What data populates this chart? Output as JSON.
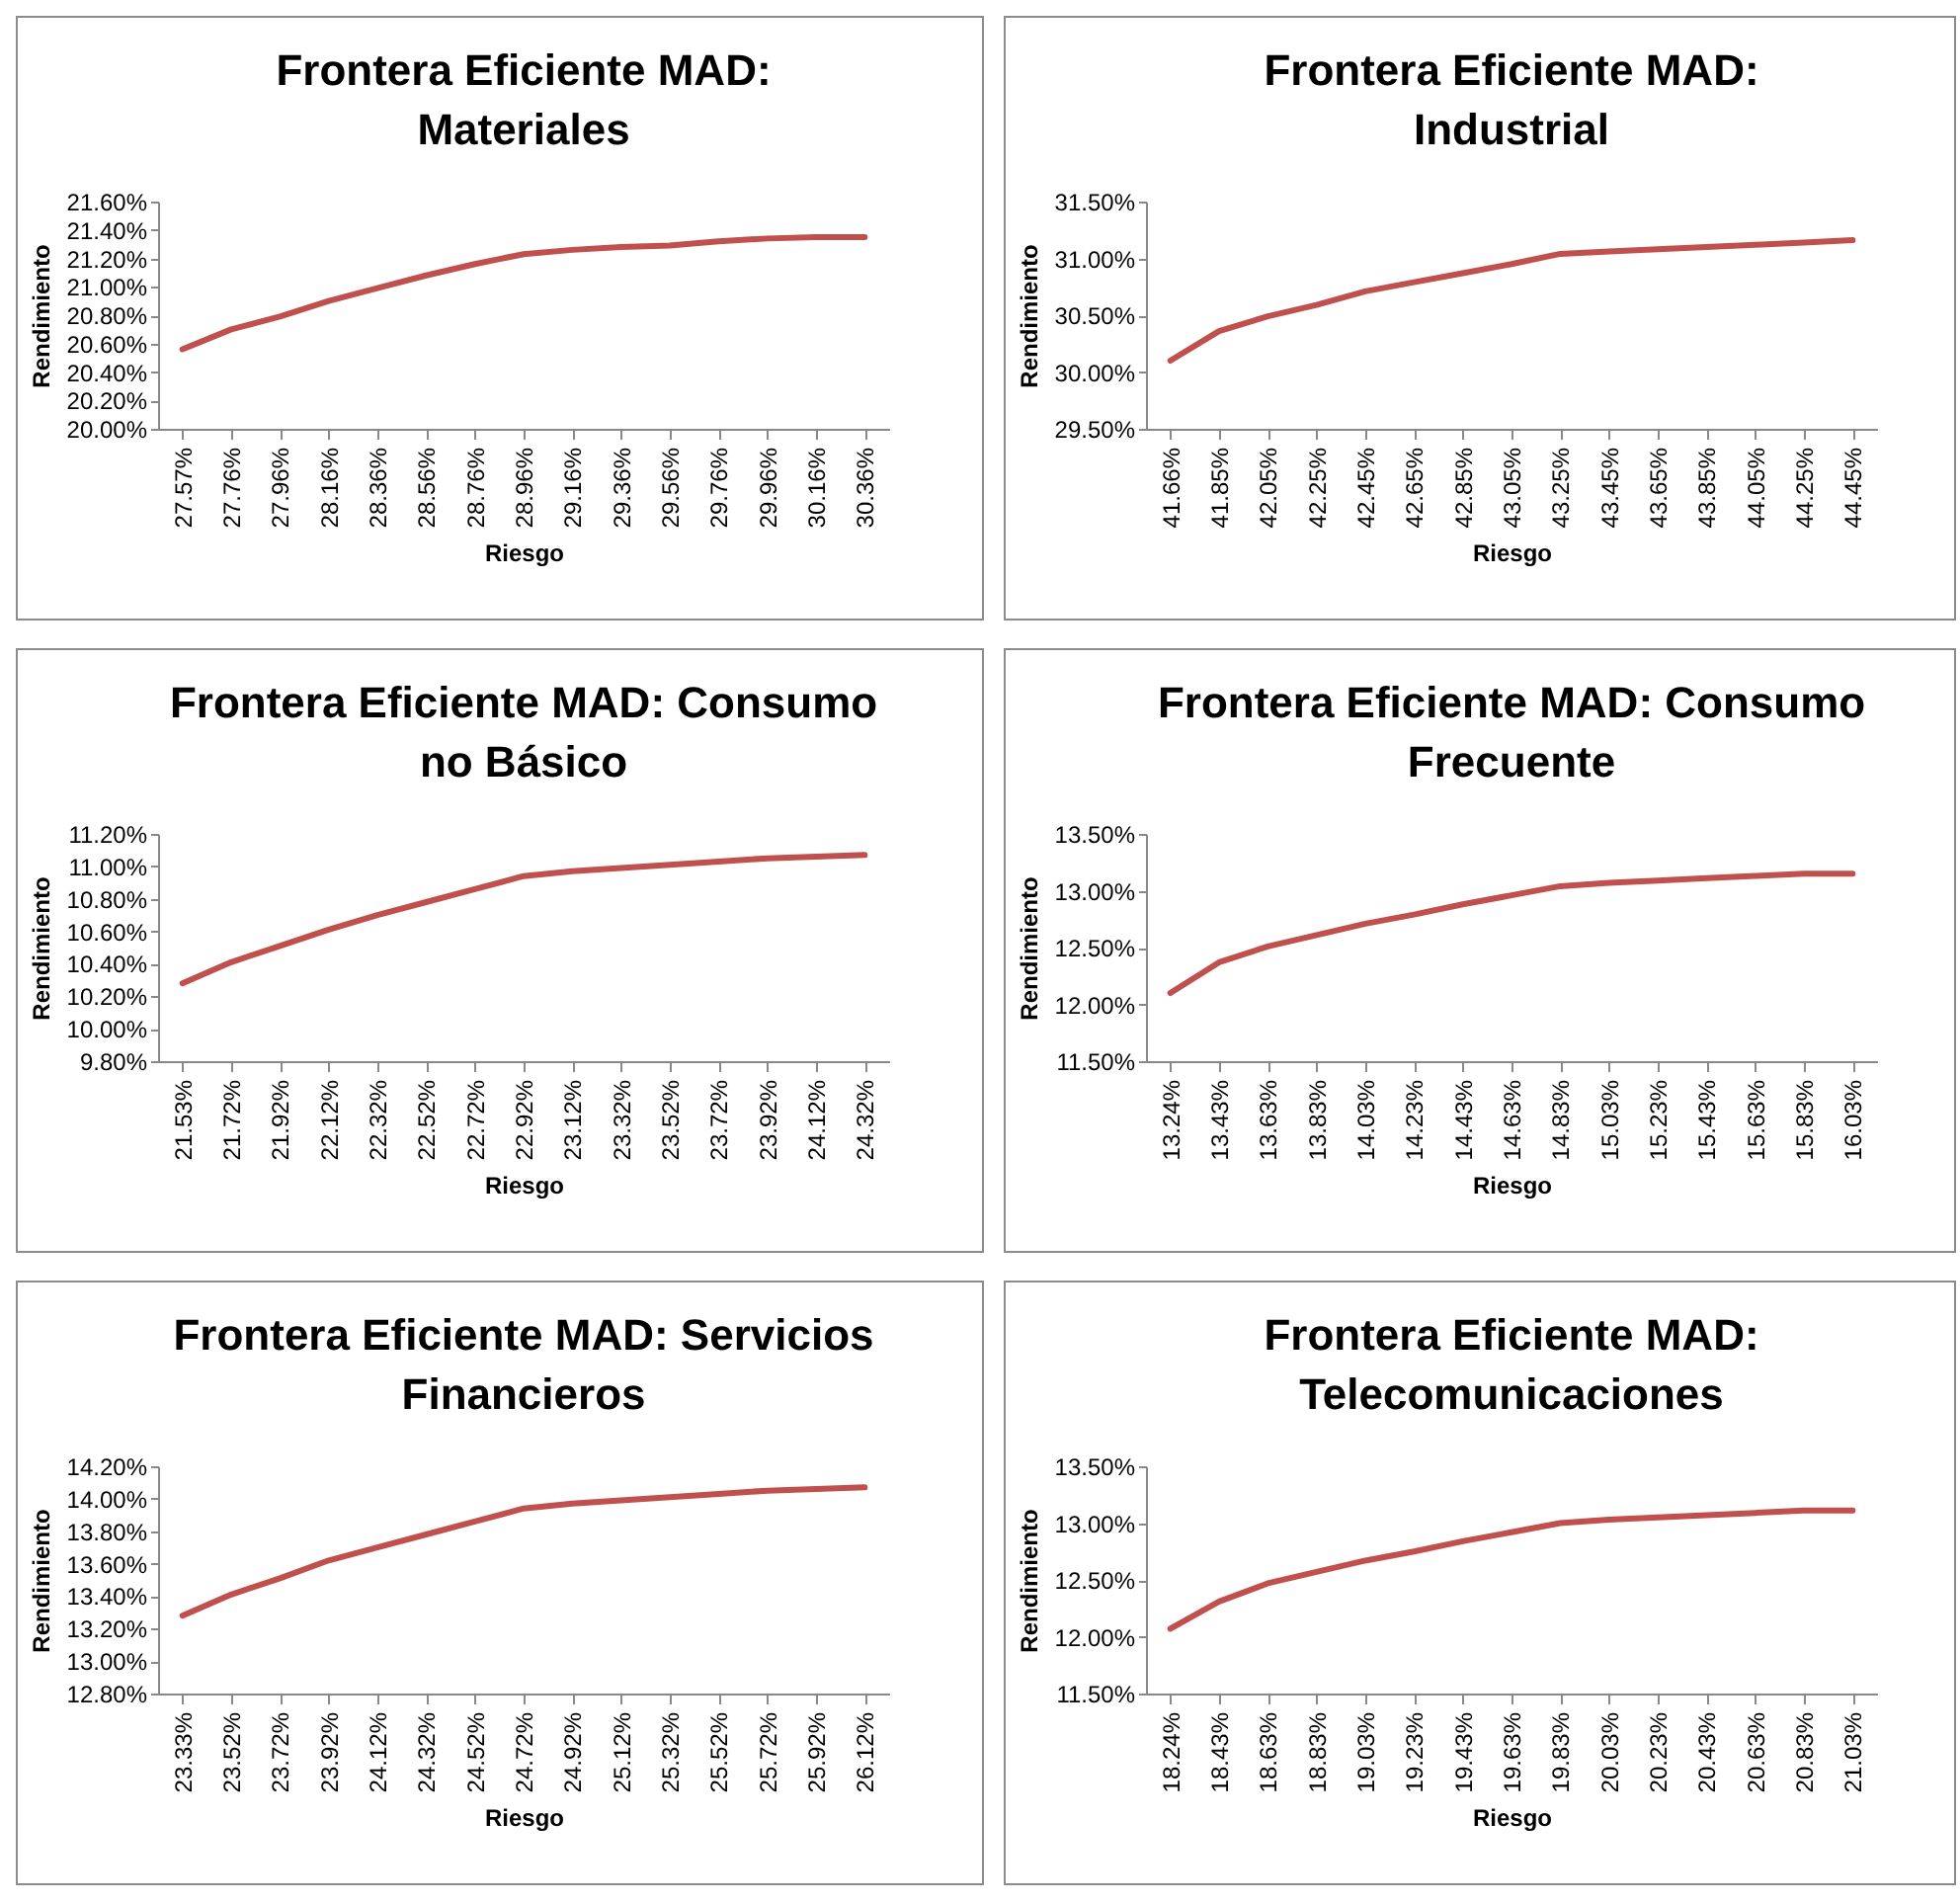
{
  "chart_data": [
    {
      "type": "line",
      "title": "Frontera Eficiente MAD: Materiales",
      "xlabel": "Riesgo",
      "ylabel": "Rendimiento",
      "categories": [
        "27.57%",
        "27.76%",
        "27.96%",
        "28.16%",
        "28.36%",
        "28.56%",
        "28.76%",
        "28.96%",
        "29.16%",
        "29.36%",
        "29.56%",
        "29.76%",
        "29.96%",
        "30.16%",
        "30.36%"
      ],
      "series": [
        {
          "color": "#c0504d",
          "values": [
            20.56,
            20.7,
            20.79,
            20.9,
            20.99,
            21.08,
            21.16,
            21.23,
            21.26,
            21.28,
            21.29,
            21.32,
            21.34,
            21.35,
            21.35
          ]
        }
      ],
      "ylim": [
        20,
        21.6
      ],
      "yticks": [
        {
          "value": 20,
          "label": "20.00%"
        },
        {
          "value": 20.2,
          "label": "20.20%"
        },
        {
          "value": 20.4,
          "label": "20.40%"
        },
        {
          "value": 20.6,
          "label": "20.60%"
        },
        {
          "value": 20.8,
          "label": "20.80%"
        },
        {
          "value": 21,
          "label": "21.00%"
        },
        {
          "value": 21.2,
          "label": "21.20%"
        },
        {
          "value": 21.4,
          "label": "21.40%"
        },
        {
          "value": 21.6,
          "label": "21.60%"
        }
      ]
    },
    {
      "type": "line",
      "title": "Frontera Eficiente MAD: Industrial",
      "xlabel": "Riesgo",
      "ylabel": "Rendimiento",
      "categories": [
        "41.66%",
        "41.85%",
        "42.05%",
        "42.25%",
        "42.45%",
        "42.65%",
        "42.85%",
        "43.05%",
        "43.25%",
        "43.45%",
        "43.65%",
        "43.85%",
        "44.05%",
        "44.25%",
        "44.45%"
      ],
      "series": [
        {
          "color": "#c0504d",
          "values": [
            30.1,
            30.36,
            30.49,
            30.59,
            30.71,
            30.79,
            30.87,
            30.95,
            31.04,
            31.06,
            31.08,
            31.1,
            31.12,
            31.14,
            31.16
          ]
        }
      ],
      "ylim": [
        29.5,
        31.5
      ],
      "yticks": [
        {
          "value": 29.5,
          "label": "29.50%"
        },
        {
          "value": 30,
          "label": "30.00%"
        },
        {
          "value": 30.5,
          "label": "30.50%"
        },
        {
          "value": 31,
          "label": "31.00%"
        },
        {
          "value": 31.5,
          "label": "31.50%"
        }
      ]
    },
    {
      "type": "line",
      "title": "Frontera Eficiente MAD: Consumo no Básico",
      "xlabel": "Riesgo",
      "ylabel": "Rendimiento",
      "categories": [
        "21.53%",
        "21.72%",
        "21.92%",
        "22.12%",
        "22.32%",
        "22.52%",
        "22.72%",
        "22.92%",
        "23.12%",
        "23.32%",
        "23.52%",
        "23.72%",
        "23.92%",
        "24.12%",
        "24.32%"
      ],
      "series": [
        {
          "color": "#c0504d",
          "values": [
            10.28,
            10.41,
            10.51,
            10.61,
            10.7,
            10.78,
            10.86,
            10.94,
            10.97,
            10.99,
            11.01,
            11.03,
            11.05,
            11.06,
            11.07
          ]
        }
      ],
      "ylim": [
        9.8,
        11.2
      ],
      "yticks": [
        {
          "value": 9.8,
          "label": "9.80%"
        },
        {
          "value": 10,
          "label": "10.00%"
        },
        {
          "value": 10.2,
          "label": "10.20%"
        },
        {
          "value": 10.4,
          "label": "10.40%"
        },
        {
          "value": 10.6,
          "label": "10.60%"
        },
        {
          "value": 10.8,
          "label": "10.80%"
        },
        {
          "value": 11,
          "label": "11.00%"
        },
        {
          "value": 11.2,
          "label": "11.20%"
        }
      ]
    },
    {
      "type": "line",
      "title": "Frontera Eficiente MAD: Consumo Frecuente",
      "xlabel": "Riesgo",
      "ylabel": "Rendimiento",
      "categories": [
        "13.24%",
        "13.43%",
        "13.63%",
        "13.83%",
        "14.03%",
        "14.23%",
        "14.43%",
        "14.63%",
        "14.83%",
        "15.03%",
        "15.23%",
        "15.43%",
        "15.63%",
        "15.83%",
        "16.03%"
      ],
      "series": [
        {
          "color": "#c0504d",
          "values": [
            12.1,
            12.37,
            12.51,
            12.61,
            12.71,
            12.79,
            12.88,
            12.96,
            13.04,
            13.07,
            13.09,
            13.11,
            13.13,
            13.15,
            13.15
          ]
        }
      ],
      "ylim": [
        11.5,
        13.5
      ],
      "yticks": [
        {
          "value": 11.5,
          "label": "11.50%"
        },
        {
          "value": 12,
          "label": "12.00%"
        },
        {
          "value": 12.5,
          "label": "12.50%"
        },
        {
          "value": 13,
          "label": "13.00%"
        },
        {
          "value": 13.5,
          "label": "13.50%"
        }
      ]
    },
    {
      "type": "line",
      "title": "Frontera Eficiente MAD: Servicios Financieros",
      "xlabel": "Riesgo",
      "ylabel": "Rendimiento",
      "categories": [
        "23.33%",
        "23.52%",
        "23.72%",
        "23.92%",
        "24.12%",
        "24.32%",
        "24.52%",
        "24.72%",
        "24.92%",
        "25.12%",
        "25.32%",
        "25.52%",
        "25.72%",
        "25.92%",
        "26.12%"
      ],
      "series": [
        {
          "color": "#c0504d",
          "values": [
            13.28,
            13.41,
            13.51,
            13.62,
            13.7,
            13.78,
            13.86,
            13.94,
            13.97,
            13.99,
            14.01,
            14.03,
            14.05,
            14.06,
            14.07
          ]
        }
      ],
      "ylim": [
        12.8,
        14.2
      ],
      "yticks": [
        {
          "value": 12.8,
          "label": "12.80%"
        },
        {
          "value": 13,
          "label": "13.00%"
        },
        {
          "value": 13.2,
          "label": "13.20%"
        },
        {
          "value": 13.4,
          "label": "13.40%"
        },
        {
          "value": 13.6,
          "label": "13.60%"
        },
        {
          "value": 13.8,
          "label": "13.80%"
        },
        {
          "value": 14,
          "label": "14.00%"
        },
        {
          "value": 14.2,
          "label": "14.20%"
        }
      ]
    },
    {
      "type": "line",
      "title": "Frontera Eficiente MAD: Telecomunicaciones",
      "xlabel": "Riesgo",
      "ylabel": "Rendimiento",
      "categories": [
        "18.24%",
        "18.43%",
        "18.63%",
        "18.83%",
        "19.03%",
        "19.23%",
        "19.43%",
        "19.63%",
        "19.83%",
        "20.03%",
        "20.23%",
        "20.43%",
        "20.63%",
        "20.83%",
        "21.03%"
      ],
      "series": [
        {
          "color": "#c0504d",
          "values": [
            12.07,
            12.31,
            12.47,
            12.57,
            12.67,
            12.75,
            12.84,
            12.92,
            13.0,
            13.03,
            13.05,
            13.07,
            13.09,
            13.11,
            13.11
          ]
        }
      ],
      "ylim": [
        11.5,
        13.5
      ],
      "yticks": [
        {
          "value": 11.5,
          "label": "11.50%"
        },
        {
          "value": 12,
          "label": "12.00%"
        },
        {
          "value": 12.5,
          "label": "12.50%"
        },
        {
          "value": 13,
          "label": "13.00%"
        },
        {
          "value": 13.5,
          "label": "13.50%"
        }
      ]
    }
  ]
}
